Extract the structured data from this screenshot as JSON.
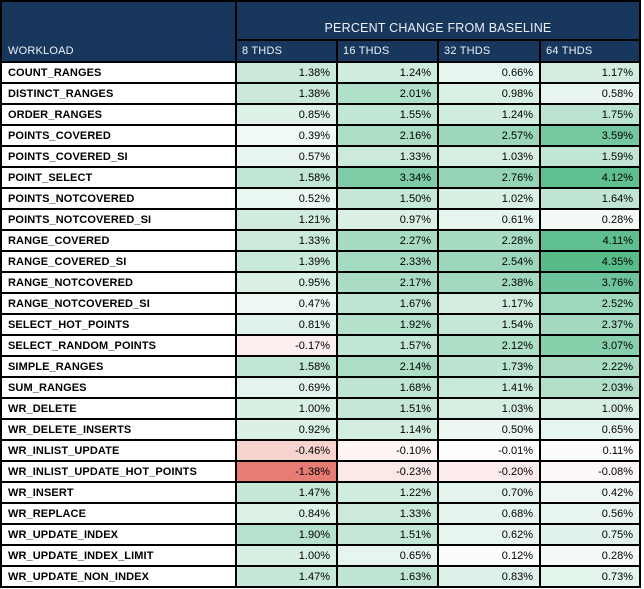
{
  "chart_data": {
    "type": "heatmap",
    "title": "PERCENT CHANGE FROM BASELINE",
    "row_label_header": "WORKLOAD",
    "columns": [
      "8 THDS",
      "16 THDS",
      "32 THDS",
      "64 THDS"
    ],
    "unit": "%",
    "value_format": "two_decimals_percent",
    "rows": [
      {
        "workload": "COUNT_RANGES",
        "values": [
          1.38,
          1.24,
          0.66,
          1.17
        ]
      },
      {
        "workload": "DISTINCT_RANGES",
        "values": [
          1.38,
          2.01,
          0.98,
          0.58
        ]
      },
      {
        "workload": "ORDER_RANGES",
        "values": [
          0.85,
          1.55,
          1.24,
          1.75
        ]
      },
      {
        "workload": "POINTS_COVERED",
        "values": [
          0.39,
          2.16,
          2.57,
          3.59
        ]
      },
      {
        "workload": "POINTS_COVERED_SI",
        "values": [
          0.57,
          1.33,
          1.03,
          1.59
        ]
      },
      {
        "workload": "POINT_SELECT",
        "values": [
          1.58,
          3.34,
          2.76,
          4.12
        ]
      },
      {
        "workload": "POINTS_NOTCOVERED",
        "values": [
          0.52,
          1.5,
          1.02,
          1.64
        ]
      },
      {
        "workload": "POINTS_NOTCOVERED_SI",
        "values": [
          1.21,
          0.97,
          0.61,
          0.28
        ]
      },
      {
        "workload": "RANGE_COVERED",
        "values": [
          1.33,
          2.27,
          2.28,
          4.11
        ]
      },
      {
        "workload": "RANGE_COVERED_SI",
        "values": [
          1.39,
          2.33,
          2.54,
          4.35
        ]
      },
      {
        "workload": "RANGE_NOTCOVERED",
        "values": [
          0.95,
          2.17,
          2.38,
          3.76
        ]
      },
      {
        "workload": "RANGE_NOTCOVERED_SI",
        "values": [
          0.47,
          1.67,
          1.17,
          2.52
        ]
      },
      {
        "workload": "SELECT_HOT_POINTS",
        "values": [
          0.81,
          1.92,
          1.54,
          2.37
        ]
      },
      {
        "workload": "SELECT_RANDOM_POINTS",
        "values": [
          -0.17,
          1.57,
          2.12,
          3.07
        ]
      },
      {
        "workload": "SIMPLE_RANGES",
        "values": [
          1.58,
          2.14,
          1.73,
          2.22
        ]
      },
      {
        "workload": "SUM_RANGES",
        "values": [
          0.69,
          1.68,
          1.41,
          2.03
        ]
      },
      {
        "workload": "WR_DELETE",
        "values": [
          1.0,
          1.51,
          1.03,
          1.0
        ]
      },
      {
        "workload": "WR_DELETE_INSERTS",
        "values": [
          0.92,
          1.14,
          0.5,
          0.65
        ]
      },
      {
        "workload": "WR_INLIST_UPDATE",
        "values": [
          -0.46,
          -0.1,
          -0.01,
          0.11
        ]
      },
      {
        "workload": "WR_INLIST_UPDATE_HOT_POINTS",
        "values": [
          -1.38,
          -0.23,
          -0.2,
          -0.08
        ]
      },
      {
        "workload": "WR_INSERT",
        "values": [
          1.47,
          1.22,
          0.7,
          0.42
        ]
      },
      {
        "workload": "WR_REPLACE",
        "values": [
          0.84,
          1.33,
          0.68,
          0.56
        ]
      },
      {
        "workload": "WR_UPDATE_INDEX",
        "values": [
          1.9,
          1.51,
          0.62,
          0.75
        ]
      },
      {
        "workload": "WR_UPDATE_INDEX_LIMIT",
        "values": [
          1.0,
          0.65,
          0.12,
          0.28
        ]
      },
      {
        "workload": "WR_UPDATE_NON_INDEX",
        "values": [
          1.47,
          1.63,
          0.83,
          0.73
        ]
      }
    ],
    "color_scale": {
      "min_color": "#E67C73",
      "mid_color": "#FFFFFF",
      "max_color": "#57BB8A",
      "domain_min": -1.38,
      "domain_mid": 0,
      "domain_max": 4.35
    },
    "layout": {
      "header_bg": "#17375D",
      "header_text_color": "#EDF1F6",
      "grid_line_color": "#000000",
      "row_label_bg": "#FFFFFF",
      "value_text_color": "#000000"
    }
  }
}
